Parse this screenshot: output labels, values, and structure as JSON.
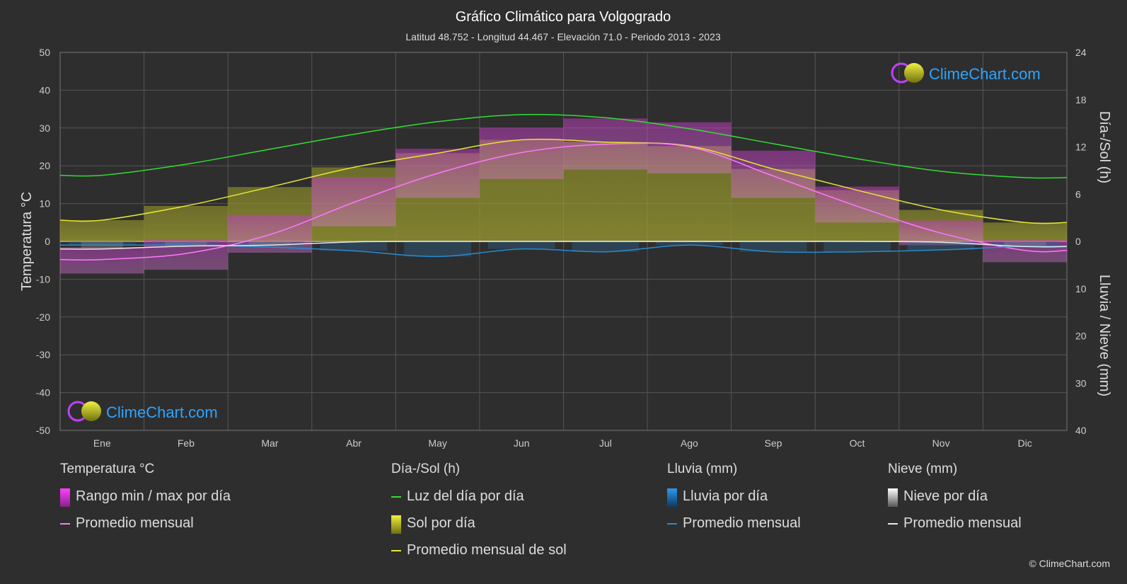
{
  "chart_data": {
    "type": "line",
    "title": "Gráfico Climático para Volgogrado",
    "subtitle": "Latitud 48.752 - Longitud 44.467 - Elevación 71.0 - Periodo 2013 - 2023",
    "categories": [
      "Ene",
      "Feb",
      "Mar",
      "Abr",
      "May",
      "Jun",
      "Jul",
      "Ago",
      "Sep",
      "Oct",
      "Nov",
      "Dic"
    ],
    "y_left": {
      "label": "Temperatura °C",
      "min": -50,
      "max": 50,
      "ticks": [
        "50",
        "40",
        "30",
        "20",
        "10",
        "0",
        "-10",
        "-20",
        "-30",
        "-40",
        "-50"
      ]
    },
    "y_right_top": {
      "label": "Día-/Sol (h)",
      "min": 0,
      "max": 24,
      "ticks": [
        "24",
        "18",
        "12",
        "6",
        "0"
      ]
    },
    "y_right_bottom": {
      "label": "Lluvia / Nieve (mm)",
      "min": 0,
      "max": 40,
      "ticks": [
        "10",
        "20",
        "30",
        "40"
      ]
    },
    "grid": true,
    "series": [
      {
        "name": "Luz del día por día",
        "axis": "sun_h",
        "color": "#33dd33",
        "values": [
          8.4,
          9.8,
          11.7,
          13.6,
          15.2,
          16.1,
          15.7,
          14.3,
          12.4,
          10.5,
          8.9,
          8.1
        ]
      },
      {
        "name": "Promedio mensual de sol",
        "axis": "sun_h",
        "color": "#e6e633",
        "values": [
          2.7,
          4.5,
          6.9,
          9.4,
          11.2,
          12.9,
          12.6,
          12.1,
          9.2,
          6.5,
          4.0,
          2.4
        ]
      },
      {
        "name": "Promedio mensual",
        "group": "Temperatura °C",
        "axis": "temp_c",
        "color": "#ff77ff",
        "values": [
          -4.8,
          -3.2,
          1.8,
          10.3,
          18.0,
          23.5,
          25.7,
          25.0,
          17.3,
          9.3,
          2.2,
          -2.4
        ]
      },
      {
        "name": "Rango max por día",
        "axis": "temp_c",
        "color": "#e040e0",
        "values": [
          -1.5,
          0.5,
          7.0,
          17.0,
          24.5,
          30.0,
          32.5,
          31.5,
          24.0,
          14.5,
          5.5,
          0.5
        ]
      },
      {
        "name": "Rango min por día",
        "axis": "temp_c",
        "color": "#e040e0",
        "values": [
          -8.5,
          -7.5,
          -3.0,
          4.0,
          11.5,
          16.5,
          19.0,
          18.0,
          11.5,
          5.0,
          -1.0,
          -5.5
        ]
      },
      {
        "name": "Promedio mensual",
        "group": "Lluvia (mm)",
        "axis": "precip_mm",
        "color": "#2a8ad4",
        "values": [
          0.8,
          0.8,
          1.2,
          2.0,
          3.2,
          1.6,
          2.2,
          0.8,
          2.2,
          2.2,
          1.8,
          1.0
        ]
      },
      {
        "name": "Promedio mensual",
        "group": "Nieve (mm)",
        "axis": "precip_mm",
        "color": "#e8e8e8",
        "values": [
          1.6,
          1.0,
          0.8,
          0.1,
          0.0,
          0.0,
          0.0,
          0.0,
          0.0,
          0.0,
          0.2,
          1.1
        ]
      }
    ]
  },
  "logo_text": "ClimeChart.com",
  "legend": [
    {
      "heading": "Temperatura °C",
      "items": [
        {
          "label": "Rango min / max por día",
          "kind": "box",
          "color": "#d83cd8"
        },
        {
          "label": "Promedio mensual",
          "kind": "line",
          "color": "#ff77ff"
        }
      ]
    },
    {
      "heading": "Día-/Sol (h)",
      "items": [
        {
          "label": "Luz del día por día",
          "kind": "line",
          "color": "#33dd33"
        },
        {
          "label": "Sol por día",
          "kind": "box",
          "color": "#c8c82a"
        },
        {
          "label": "Promedio mensual de sol",
          "kind": "line",
          "color": "#e6e633"
        }
      ]
    },
    {
      "heading": "Lluvia (mm)",
      "items": [
        {
          "label": "Lluvia por día",
          "kind": "box",
          "color": "#2a8ad4"
        },
        {
          "label": "Promedio mensual",
          "kind": "line",
          "color": "#2a8ad4"
        }
      ]
    },
    {
      "heading": "Nieve (mm)",
      "items": [
        {
          "label": "Nieve por día",
          "kind": "box",
          "color": "#cccccc"
        },
        {
          "label": "Promedio mensual",
          "kind": "line",
          "color": "#e8e8e8"
        }
      ]
    }
  ],
  "copyright": "© ClimeChart.com"
}
